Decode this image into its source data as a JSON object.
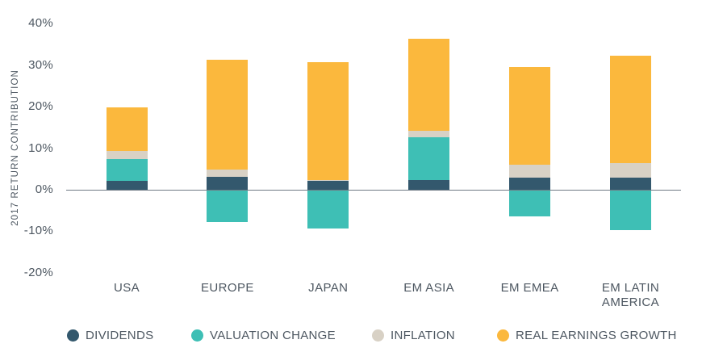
{
  "chart_data": {
    "type": "bar",
    "stacked": true,
    "title": "",
    "ylabel": "2017 RETURN CONTRIBUTION",
    "xlabel": "",
    "categories": [
      "USA",
      "EUROPE",
      "JAPAN",
      "EM ASIA",
      "EM EMEA",
      "EM LATIN AMERICA"
    ],
    "series": [
      {
        "name": "DIVIDENDS",
        "color": "#33586D",
        "values": [
          2.1,
          3.2,
          2.1,
          2.3,
          3.0,
          3.0
        ]
      },
      {
        "name": "VALUATION CHANGE",
        "color": "#3EBFB5",
        "values": [
          5.2,
          -7.8,
          -9.4,
          10.3,
          -6.5,
          -9.7
        ]
      },
      {
        "name": "INFLATION",
        "color": "#D8D1C5",
        "values": [
          2.0,
          1.6,
          0.2,
          1.6,
          3.0,
          3.5
        ]
      },
      {
        "name": "REAL EARNINGS GROWTH",
        "color": "#FBB83D",
        "values": [
          10.6,
          26.4,
          28.4,
          22.2,
          23.5,
          25.7
        ]
      }
    ],
    "y_tick_labels": [
      "40%",
      "30%",
      "20%",
      "10%",
      "0%",
      "-10%",
      "-20%"
    ],
    "y_tick_values": [
      40,
      30,
      20,
      10,
      0,
      -10,
      -20
    ],
    "ylim": [
      -20,
      40
    ],
    "grid": false,
    "zero_line": true,
    "legend_position": "bottom"
  },
  "colors": {
    "text": "#4D5761",
    "zero_line": "#6F7A84",
    "background": "#FFFFFF"
  }
}
